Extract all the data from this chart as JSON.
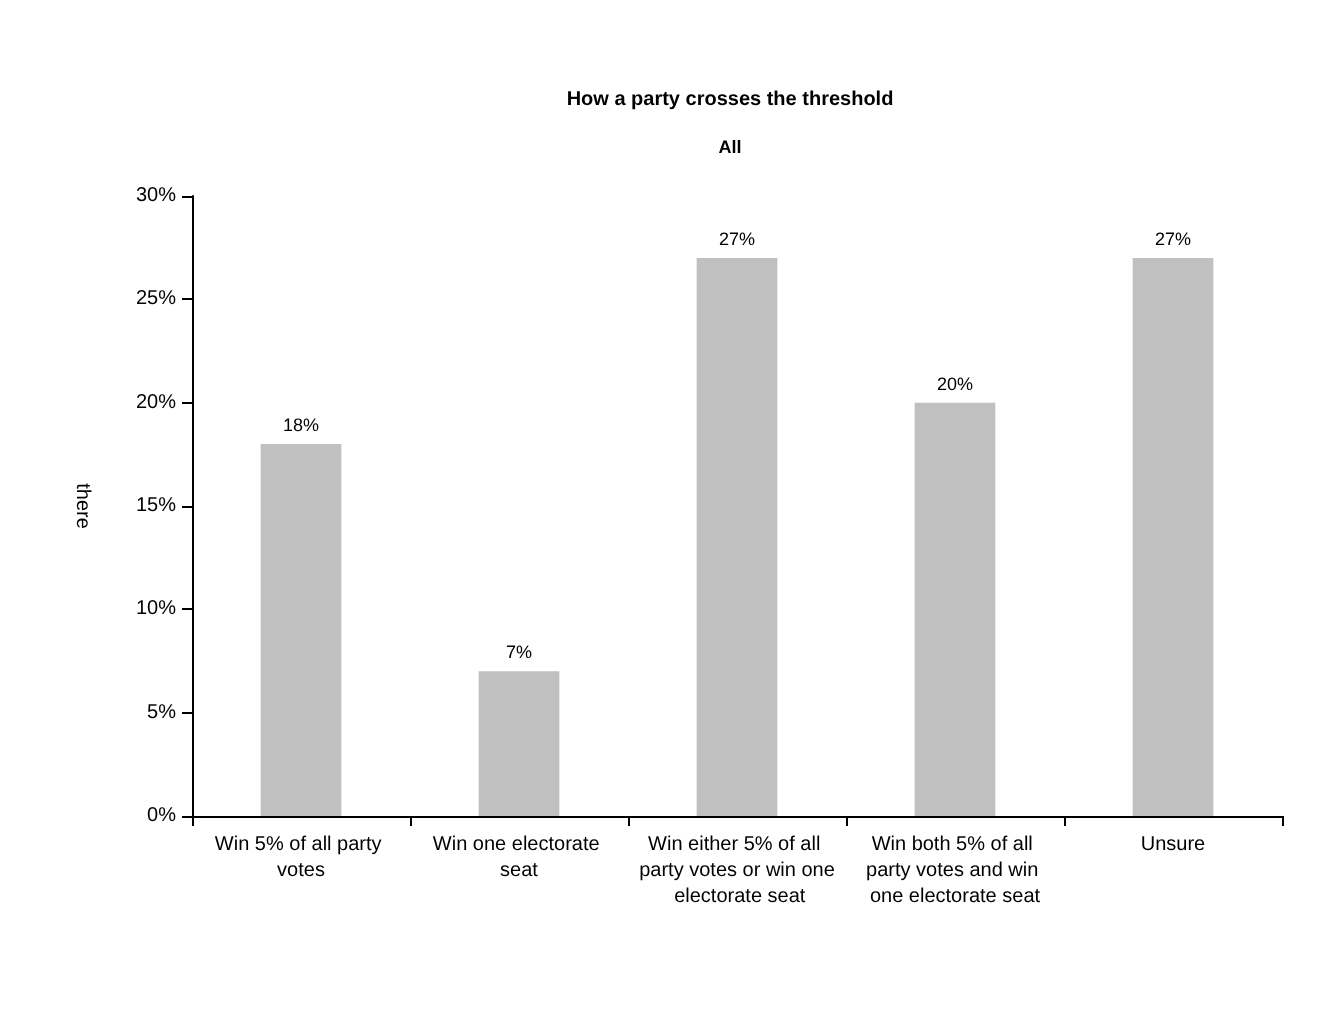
{
  "chart_data": {
    "type": "bar",
    "title": "How a party crosses the threshold",
    "subtitle": "All",
    "ylabel": "there",
    "categories": [
      "Win 5% of all party votes",
      "Win one electorate seat",
      "Win either 5% of all party votes or win one electorate seat",
      "Win both 5% of all party votes and win one electorate seat",
      "Unsure"
    ],
    "values": [
      18,
      7,
      27,
      20,
      27
    ],
    "color": "#c0c0c0",
    "ylim": [
      0,
      30
    ],
    "yticks": [
      {
        "value": 0,
        "label": "0%"
      },
      {
        "value": 5,
        "label": "5%"
      },
      {
        "value": 10,
        "label": "10%"
      },
      {
        "value": 15,
        "label": "15%"
      },
      {
        "value": 20,
        "label": "20%"
      },
      {
        "value": 25,
        "label": "25%"
      },
      {
        "value": 30,
        "label": "30%"
      }
    ],
    "value_labels": [
      "18%",
      "7%",
      "27%",
      "20%",
      "27%"
    ]
  }
}
